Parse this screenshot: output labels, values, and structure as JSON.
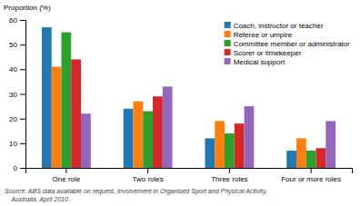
{
  "chart_data": {
    "type": "bar",
    "ylabel": "Proportion (%)",
    "categories": [
      "One role",
      "Two roles",
      "Three roles",
      "Four or more roles"
    ],
    "series": [
      {
        "name": "Coach, instructor or teacher",
        "values": [
          57,
          24,
          12,
          7
        ]
      },
      {
        "name": "Referee or umpire",
        "values": [
          41,
          27,
          19,
          12
        ]
      },
      {
        "name": "Committee member or administrator",
        "values": [
          55,
          23,
          14,
          7
        ]
      },
      {
        "name": "Scorer or timekeeper",
        "values": [
          44,
          29,
          18,
          8
        ]
      },
      {
        "name": "Medical support",
        "values": [
          22,
          33,
          25,
          19
        ]
      }
    ],
    "ylim": [
      0,
      60
    ],
    "yticks": [
      0,
      10,
      20,
      30,
      40,
      50,
      60
    ],
    "grid": false,
    "legend": "upper right",
    "annotations": [
      "Source: ABS data available on request, Involvement in Organised Sport and Physical Activity,",
      "    Australia, April 2010."
    ]
  }
}
